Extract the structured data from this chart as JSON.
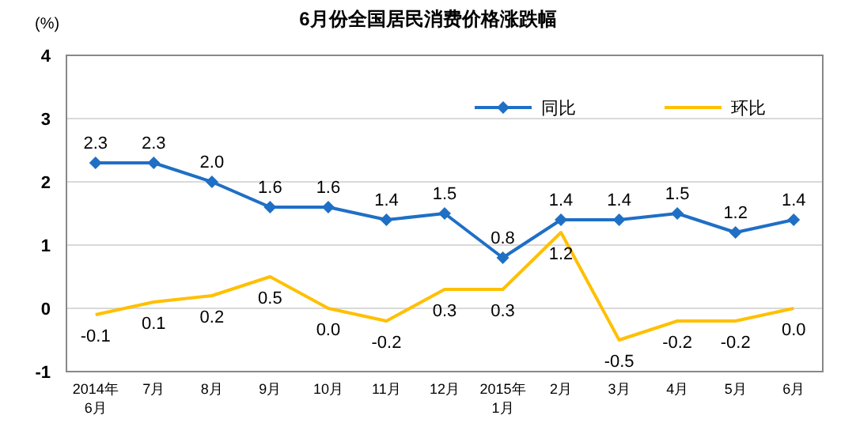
{
  "chart_data": {
    "type": "line",
    "title": "6月份全国居民消费价格涨跌幅",
    "ylabel": "(%)",
    "categories": [
      "2014年\n6月",
      "7月",
      "8月",
      "9月",
      "10月",
      "11月",
      "12月",
      "2015年\n1月",
      "2月",
      "3月",
      "4月",
      "5月",
      "6月"
    ],
    "series": [
      {
        "name": "同比",
        "color": "#1f6fc5",
        "marker": "diamond",
        "values": [
          2.3,
          2.3,
          2.0,
          1.6,
          1.6,
          1.4,
          1.5,
          0.8,
          1.4,
          1.4,
          1.5,
          1.2,
          1.4
        ],
        "value_labels": [
          "2.3",
          "2.3",
          "2.0",
          "1.6",
          "1.6",
          "1.4",
          "1.5",
          "0.8",
          "1.4",
          "1.4",
          "1.5",
          "1.2",
          "1.4"
        ]
      },
      {
        "name": "环比",
        "color": "#ffc000",
        "marker": "none",
        "values": [
          -0.1,
          0.1,
          0.2,
          0.5,
          0.0,
          -0.2,
          0.3,
          0.3,
          1.2,
          -0.5,
          -0.2,
          -0.2,
          0.0
        ],
        "value_labels": [
          "-0.1",
          "0.1",
          "0.2",
          "0.5",
          "0.0",
          "-0.2",
          "0.3",
          "0.3",
          "1.2",
          "-0.5",
          "-0.2",
          "-0.2",
          "0.0"
        ]
      }
    ],
    "ylim": [
      -1,
      4
    ],
    "yticks": [
      -1,
      0,
      1,
      2,
      3,
      4
    ],
    "grid": "y",
    "legend": "top right",
    "line_style": "solid"
  }
}
